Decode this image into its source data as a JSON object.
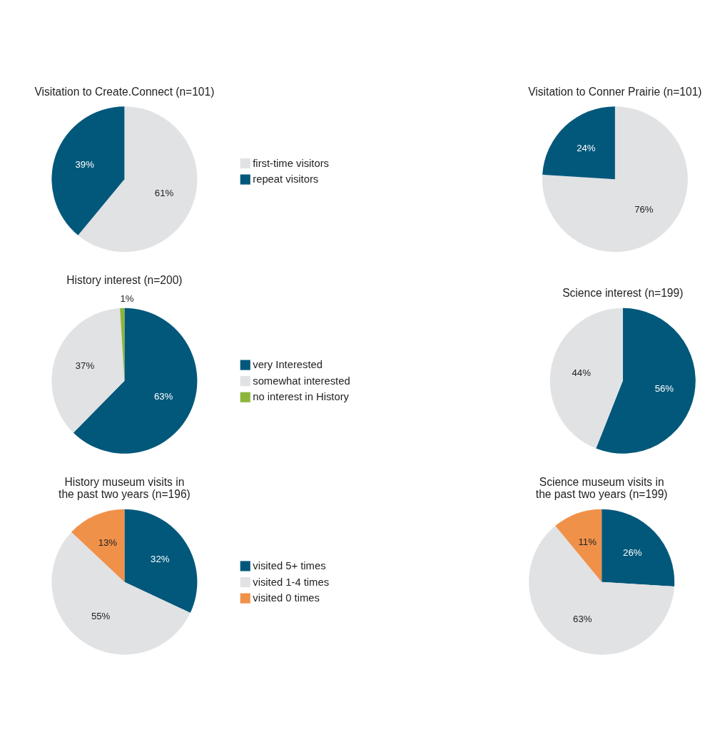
{
  "chart_data": [
    {
      "type": "pie",
      "title": "Visitation to Create.Connect (n=101)",
      "categories": [
        "first-time visitors",
        "repeat visitors"
      ],
      "values": [
        61,
        39
      ],
      "colors": [
        "#e1e2e4",
        "#02587b"
      ],
      "value_labels": [
        "61%",
        "39%"
      ],
      "legend": "right"
    },
    {
      "type": "pie",
      "title": "Visitation to Conner Prairie (n=101)",
      "categories": [
        null,
        null
      ],
      "values": [
        76,
        24
      ],
      "colors": [
        "#e1e2e4",
        "#02587b"
      ],
      "value_labels": [
        "76%",
        "24%"
      ]
    },
    {
      "type": "pie",
      "title": "History interest (n=200)",
      "categories": [
        "very Interested",
        "somewhat interested",
        "no interest in History"
      ],
      "values": [
        63,
        37,
        1
      ],
      "colors": [
        "#02587b",
        "#e1e2e4",
        "#8db53c"
      ],
      "value_labels": [
        "63%",
        "37%",
        "1%"
      ],
      "legend": "right"
    },
    {
      "type": "pie",
      "title": "Science interest (n=199)",
      "categories": [
        null,
        null
      ],
      "values": [
        56,
        44
      ],
      "colors": [
        "#02587b",
        "#e1e2e4"
      ],
      "value_labels": [
        "56%",
        "44%"
      ]
    },
    {
      "type": "pie",
      "title": "History museum visits in\nthe past two years (n=196)",
      "categories": [
        "visited 5+ times",
        "visited 1-4 times",
        "visited 0 times"
      ],
      "values": [
        32,
        55,
        13
      ],
      "colors": [
        "#02587b",
        "#e1e2e4",
        "#f0914a"
      ],
      "value_labels": [
        "32%",
        "55%",
        "13%"
      ],
      "legend": "right"
    },
    {
      "type": "pie",
      "title": "Science museum visits in\nthe past two years (n=199)",
      "categories": [
        null,
        null,
        null
      ],
      "values": [
        26,
        63,
        11
      ],
      "colors": [
        "#02587b",
        "#e1e2e4",
        "#f0914a"
      ],
      "value_labels": [
        "26%",
        "63%",
        "11%"
      ]
    }
  ]
}
